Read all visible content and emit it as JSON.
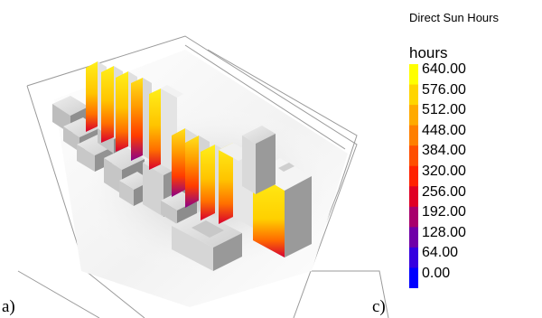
{
  "panel_labels": {
    "left": "a)",
    "right": "c)"
  },
  "legend": {
    "title": "Direct Sun Hours",
    "unit": "hours",
    "ticks": [
      "640.00",
      "576.00",
      "512.00",
      "448.00",
      "384.00",
      "320.00",
      "256.00",
      "192.00",
      "128.00",
      "64.00",
      "0.00"
    ],
    "min": 0,
    "max": 640,
    "color_stops": [
      "#ffff00",
      "#ffd500",
      "#ffaa00",
      "#ff7f00",
      "#ff4e00",
      "#ff2200",
      "#e00024",
      "#a8006c",
      "#7000a8",
      "#3500e0",
      "#0000ff"
    ]
  },
  "colors": {
    "high": "#ffef1a",
    "mid": "#ff6f00",
    "low": "#c8003a",
    "shade_light": "#e6e6e6",
    "shade_dark": "#9c9c9c"
  }
}
